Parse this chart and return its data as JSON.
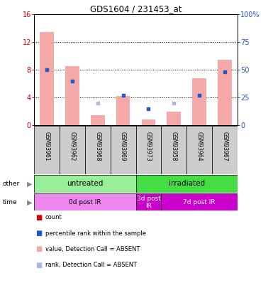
{
  "title": "GDS1604 / 231453_at",
  "samples": [
    "GSM93961",
    "GSM93962",
    "GSM93968",
    "GSM93969",
    "GSM93973",
    "GSM93958",
    "GSM93964",
    "GSM93967"
  ],
  "bar_values": [
    13.5,
    8.5,
    1.5,
    4.2,
    0.8,
    2.0,
    6.8,
    9.5
  ],
  "rank_values": [
    50,
    40,
    20,
    27,
    15,
    20,
    27,
    48
  ],
  "bar_absent": [
    true,
    true,
    true,
    true,
    true,
    true,
    true,
    true
  ],
  "rank_absent": [
    false,
    false,
    true,
    false,
    false,
    true,
    false,
    false
  ],
  "ylim_left": [
    0,
    16
  ],
  "ylim_right": [
    0,
    100
  ],
  "yticks_left": [
    0,
    4,
    8,
    12,
    16
  ],
  "yticks_right": [
    0,
    25,
    50,
    75,
    100
  ],
  "yticklabels_right": [
    "0",
    "25",
    "50",
    "75",
    "100%"
  ],
  "bar_color_absent": "#f4a9a8",
  "rank_color_present": "#2255cc",
  "rank_color_absent": "#aab8e8",
  "group_other": [
    {
      "label": "untreated",
      "start": 0,
      "end": 4,
      "color": "#99ee99"
    },
    {
      "label": "irradiated",
      "start": 4,
      "end": 8,
      "color": "#44dd44"
    }
  ],
  "group_time": [
    {
      "label": "0d post IR",
      "start": 0,
      "end": 4,
      "color": "#ee88ee"
    },
    {
      "label": "3d post\nIR",
      "start": 4,
      "end": 5,
      "color": "#cc00cc"
    },
    {
      "label": "7d post IR",
      "start": 5,
      "end": 8,
      "color": "#cc00cc"
    }
  ],
  "legend_items": [
    {
      "label": "count",
      "color": "#cc0000"
    },
    {
      "label": "percentile rank within the sample",
      "color": "#2255cc"
    },
    {
      "label": "value, Detection Call = ABSENT",
      "color": "#f4a9a8"
    },
    {
      "label": "rank, Detection Call = ABSENT",
      "color": "#aab8e8"
    }
  ],
  "bg_color": "#cccccc",
  "axis_color_left": "#cc0000",
  "axis_color_right": "#2255cc",
  "grid_lines": [
    4,
    8,
    12
  ]
}
